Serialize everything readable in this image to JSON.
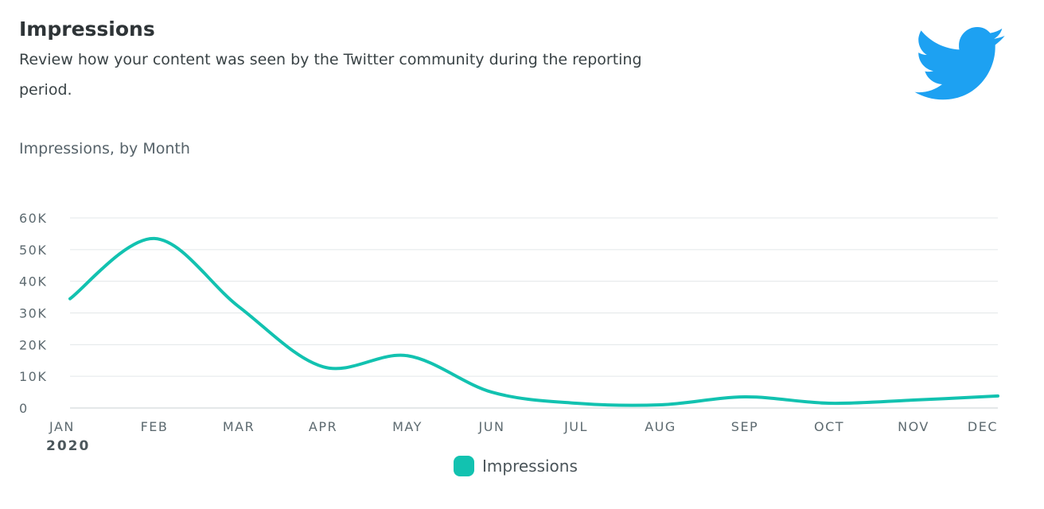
{
  "header": {
    "title": "Impressions",
    "subtitle": "Review how your content was seen by the Twitter community during the reporting period."
  },
  "logo": {
    "icon": "twitter-bird-icon",
    "color": "#1da1f2"
  },
  "chart_data": {
    "type": "line",
    "title": "Impressions, by Month",
    "categories": [
      "JAN",
      "FEB",
      "MAR",
      "APR",
      "MAY",
      "JUN",
      "JUL",
      "AUG",
      "SEP",
      "OCT",
      "NOV",
      "DEC"
    ],
    "year_label": "2020",
    "series": [
      {
        "name": "Impressions",
        "color": "#12c2b0",
        "values": [
          34500,
          53500,
          32000,
          13000,
          16500,
          5000,
          1500,
          1000,
          3500,
          1500,
          2500,
          3800
        ]
      }
    ],
    "y_ticks": [
      "0",
      "10K",
      "20K",
      "30K",
      "40K",
      "50K",
      "60K"
    ],
    "ylim": [
      0,
      60000
    ],
    "grid": true,
    "legend": "bottom-center"
  }
}
